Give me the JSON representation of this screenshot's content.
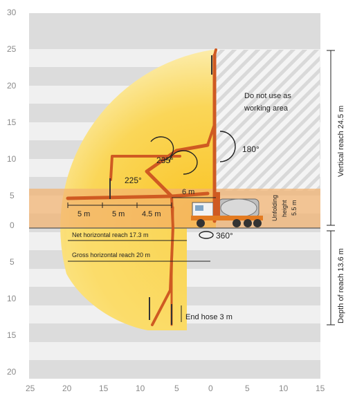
{
  "y_axis": {
    "ticks_up": [
      "30",
      "25",
      "20",
      "15",
      "10",
      "5",
      "0"
    ],
    "ticks_down": [
      "5",
      "10",
      "15",
      "20"
    ]
  },
  "x_axis": {
    "ticks": [
      "25",
      "20",
      "15",
      "10",
      "5",
      "0",
      "5",
      "10",
      "15"
    ]
  },
  "zone_label": [
    "Do not use as",
    "working area"
  ],
  "angles": {
    "a235": "235°",
    "a225": "225°",
    "a180": "180°",
    "a360": "360°"
  },
  "segments": {
    "s1": "5 m",
    "s2": "5 m",
    "s3": "4.5 m",
    "s4": "6 m"
  },
  "reach": {
    "net": "Net horizontal reach 17.3 m",
    "gross": "Gross horizontal reach 20 m",
    "end_hose": "End hose 3 m",
    "vertical": "Vertical reach 24.5 m",
    "depth": "Depth of reach 13.6 m",
    "unfolding_l1": "Unfolding",
    "unfolding_l2": "height",
    "unfolding_l3": "5.5 m"
  },
  "colors": {
    "stripe": "#dcdcdc",
    "envelope": "#f8cf3c",
    "band": "#f2b370",
    "boom": "#cf5a22",
    "truck_orange": "#e37b21"
  }
}
